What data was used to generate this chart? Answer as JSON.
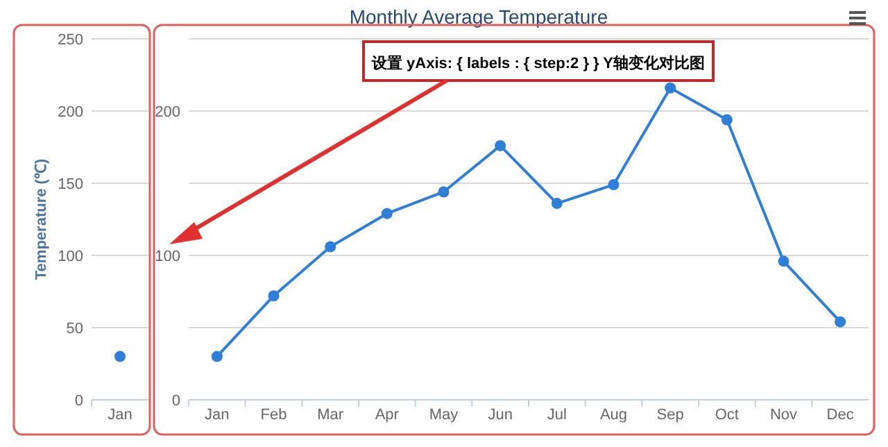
{
  "chart_data": [
    {
      "type": "line",
      "ylabel": "Temperature (℃)",
      "categories": [
        "Jan"
      ],
      "series": [
        {
          "color": "#2f7ed8",
          "values": [
            30
          ]
        }
      ],
      "ylim": [
        0,
        250
      ],
      "yticks": [
        0,
        50,
        100,
        150,
        200,
        250
      ],
      "grid": "y",
      "marker": "circle"
    },
    {
      "type": "line",
      "title": "Monthly Average Temperature",
      "annotations": [
        "设置 yAxis: { labels : { step:2 } } Y轴变化对比图"
      ],
      "categories": [
        "Jan",
        "Feb",
        "Mar",
        "Apr",
        "May",
        "Jun",
        "Jul",
        "Aug",
        "Sep",
        "Oct",
        "Nov",
        "Dec"
      ],
      "series": [
        {
          "color": "#2f7ed8",
          "values": [
            30,
            72,
            106,
            129,
            144,
            176,
            136,
            149,
            216,
            194,
            96,
            54
          ]
        }
      ],
      "ylim": [
        0,
        250
      ],
      "yticks": [
        0,
        {
          "value": 50,
          "label": null
        },
        100,
        {
          "value": 150,
          "label": null
        },
        200,
        {
          "value": 250,
          "label": null
        }
      ],
      "grid": "y",
      "marker": "circle"
    }
  ]
}
